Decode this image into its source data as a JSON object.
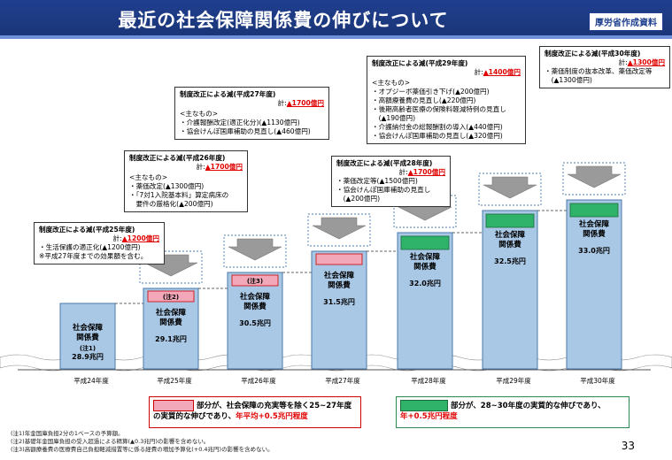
{
  "title": "最近の社会保障関係費の伸びについて",
  "source_badge": "厚労省作成資料",
  "chart_data": {
    "type": "bar",
    "categories": [
      "平成24年度",
      "平成25年度",
      "平成26年度",
      "平成27年度",
      "平成28年度",
      "平成29年度",
      "平成30年度"
    ],
    "values": [
      28.9,
      29.1,
      30.5,
      31.5,
      32.0,
      32.5,
      33.0
    ],
    "unit": "兆円",
    "bar_title": "社会保障関係費",
    "value_labels": [
      "28.9兆円",
      "29.1兆円",
      "30.5兆円",
      "31.5兆円",
      "32.0兆円",
      "32.5兆円",
      "33.0兆円"
    ],
    "bar_notes": [
      "(注1)",
      "(注2)",
      "(注3)",
      "",
      "",
      "",
      ""
    ],
    "title": "",
    "xlabel": "",
    "ylabel": ""
  },
  "colors": {
    "bar": "#a9c8e6",
    "bar_border": "#4a78a8",
    "pink": "#f2a8b8",
    "green": "#2fb36a",
    "accent_red": "#e00000",
    "title_bg": "#1f3f8f"
  },
  "annotations": [
    {
      "head": "制度改正による減(平成25年度)",
      "total_prefix": "計:",
      "total": "▲1200億円",
      "items": [
        "・生活保護の適正化(▲1200億円)"
      ],
      "note": "※平成27年度までの効果額を含む。"
    },
    {
      "head": "制度改正による減(平成26年度)",
      "total_prefix": "計:",
      "total": "▲1700億円",
      "sub": "<主なもの>",
      "items": [
        "・薬価改定(▲1300億円)",
        "・「7対1入院基本料」算定病床の",
        "　要件の厳格化(▲200億円)"
      ]
    },
    {
      "head": "制度改正による減(平成27年度)",
      "total_prefix": "計:",
      "total": "▲1700億円",
      "sub": "<主なもの>",
      "items": [
        "・介護報酬改定(適正化分)(▲1130億円)",
        "・協会けんぽ国庫補助の見直し(▲460億円)"
      ]
    },
    {
      "head": "制度改正による減(平成28年度)",
      "total_prefix": "計:",
      "total": "▲1700億円",
      "items": [
        "・薬価改定等(▲1500億円)",
        "・協会けんぽ国庫補助の見直し",
        "　(▲200億円)"
      ]
    },
    {
      "head": "制度改正による減(平成29年度)",
      "total_prefix": "計:",
      "total": "▲1400億円",
      "sub": "<主なもの>",
      "items": [
        "・オプジーボ薬価引き下げ(▲200億円)",
        "・高額療養費の見直し(▲220億円)",
        "・後期高齢者医療の保険料軽減特例の見直し",
        "　(▲190億円)",
        "・介護納付金の総報酬割の導入(▲440億円)",
        "・協会けんぽ国庫補助の見直し(▲320億円)"
      ]
    },
    {
      "head": "制度改正による減(平成30年度)",
      "total_prefix": "計:",
      "total": "▲1300億円",
      "items": [
        "・薬価制度の抜本改革、薬価改定等",
        "　(▲1300億円)"
      ]
    }
  ],
  "legend": {
    "pink_text": "部分が、社会保障の充実等を除く25~27年度の実質的な伸びであり、",
    "pink_red": "年平均+0.5兆円程度",
    "green_text": "部分が、28~30年度の実質的な伸びであり、",
    "green_red": "年+0.5兆円程度"
  },
  "footnotes": [
    "(注1)年金国庫負担2分の1ベースの予算額。",
    "(注2)基礎年金国庫負担の受入超過による精算(▲0.3兆円)の影響を含めない。",
    "(注3)高額療養費の医療費自己負担軽減措置等に係る経費の増加予算化(+0.4兆円)の影響を含めない。"
  ],
  "page_number": "33"
}
